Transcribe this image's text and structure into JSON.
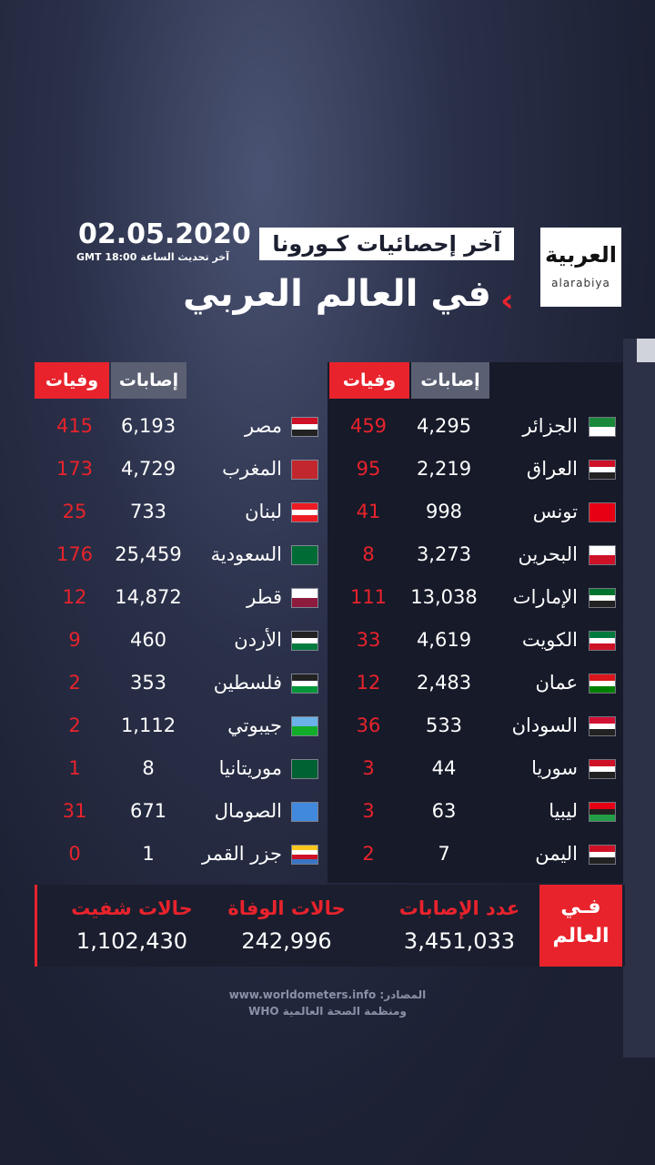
{
  "header": {
    "date": "02.05.2020",
    "update": "آخر تحديث الساعة GMT 18:00",
    "subtitle": "آخر إحصائيات كـورونا",
    "title": "في العالم العربي",
    "logo": "العربية",
    "logo_latin": "alarabiya"
  },
  "table_right": {
    "columns": [
      "إصابات",
      "وفيات"
    ],
    "rows": [
      [
        "الجزائر",
        "4,295",
        "459"
      ],
      [
        "العراق",
        "2,219",
        "95"
      ],
      [
        "تونس",
        "998",
        "41"
      ],
      [
        "البحرين",
        "3,273",
        "8"
      ],
      [
        "الإمارات",
        "13,038",
        "111"
      ],
      [
        "الكويت",
        "4,619",
        "33"
      ],
      [
        "عمان",
        "2,483",
        "12"
      ],
      [
        "السودان",
        "533",
        "36"
      ],
      [
        "سوريا",
        "44",
        "3"
      ],
      [
        "ليبيا",
        "63",
        "3"
      ],
      [
        "اليمن",
        "7",
        "2"
      ]
    ]
  },
  "table_left": {
    "columns": [
      "إصابات",
      "وفيات"
    ],
    "rows": [
      [
        "مصر",
        "6,193",
        "415"
      ],
      [
        "المغرب",
        "4,729",
        "173"
      ],
      [
        "لبنان",
        "733",
        "25"
      ],
      [
        "السعودية",
        "25,459",
        "176"
      ],
      [
        "قطر",
        "14,872",
        "12"
      ],
      [
        "الأردن",
        "460",
        "9"
      ],
      [
        "فلسطين",
        "353",
        "2"
      ],
      [
        "جيبوتي",
        "1,112",
        "2"
      ],
      [
        "موريتانيا",
        "8",
        "1"
      ],
      [
        "الصومال",
        "671",
        "31"
      ],
      [
        "جزر القمر",
        "1",
        "0"
      ]
    ]
  },
  "world": {
    "label_line1": "فـي",
    "label_line2": "العالم",
    "stats": [
      {
        "label": "عدد الإصابات",
        "value": "3,451,033"
      },
      {
        "label": "حالات الوفاة",
        "value": "242,996"
      },
      {
        "label": "حالات شفيت",
        "value": "1,102,430"
      }
    ]
  },
  "source": {
    "line1": "المصادر: www.worldometers.info",
    "line2": "ومنظمة الصحة العالمية WHO"
  }
}
